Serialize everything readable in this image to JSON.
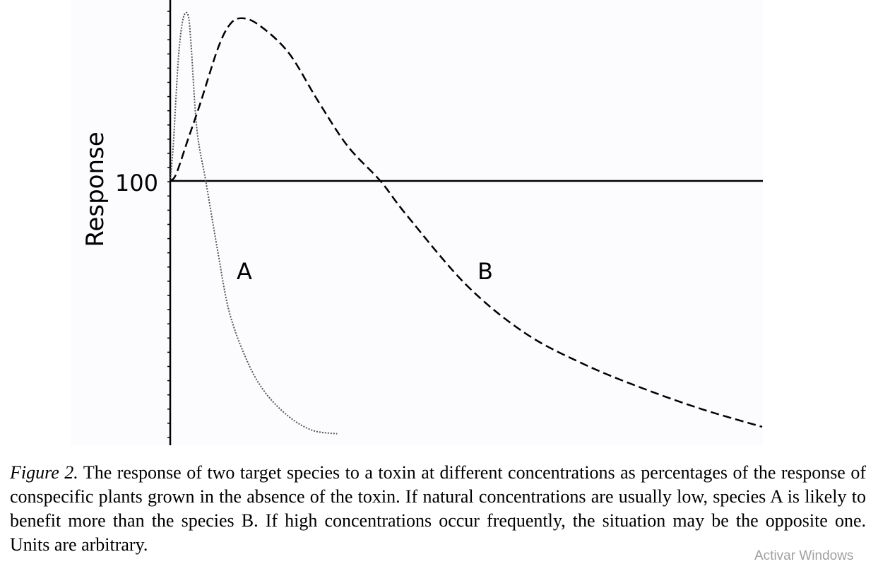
{
  "chart_data": {
    "type": "line",
    "ylabel": "Response",
    "xlabel": "",
    "y_tick_labels": [
      {
        "value": 100,
        "label": "100"
      }
    ],
    "x_range": [
      0,
      10
    ],
    "y_range": [
      -73,
      50
    ],
    "reference_line": {
      "y": 100
    },
    "series": [
      {
        "name": "A",
        "style": "dotted",
        "x": [
          0,
          0.05,
          0.1,
          0.15,
          0.22,
          0.3,
          0.35,
          0.45,
          0.6,
          0.8,
          1.0,
          1.3,
          1.6,
          2.0,
          2.4,
          2.82
        ],
        "y": [
          0,
          10,
          25,
          38,
          47,
          48,
          40,
          15,
          0,
          -20,
          -38,
          -52,
          -61,
          -68,
          -72,
          -73
        ]
      },
      {
        "name": "B",
        "style": "dashed",
        "x": [
          0,
          0.1,
          0.3,
          0.5,
          0.8,
          1.0,
          1.2,
          1.5,
          2.0,
          2.5,
          3.0,
          3.55,
          4.0,
          5.0,
          6.0,
          7.0,
          8.0,
          9.0,
          10.0
        ],
        "y": [
          0,
          2,
          12,
          22,
          38,
          45,
          47,
          45,
          37,
          23,
          10,
          0,
          -10,
          -30,
          -44,
          -53,
          -60,
          -66,
          -71
        ]
      }
    ],
    "annotations": [
      "A",
      "B"
    ]
  },
  "caption": {
    "figure_label": "Figure 2.",
    "text": "The response of two target species to a toxin at different concentrations as percentages of the response of conspecific plants grown in the absence of the toxin. If natural concentrations are usually low, species A is likely to benefit more than the species B. If high concentrations occur frequently, the situation may be the opposite one. Units are arbitrary."
  },
  "watermark": "Activar Windows"
}
